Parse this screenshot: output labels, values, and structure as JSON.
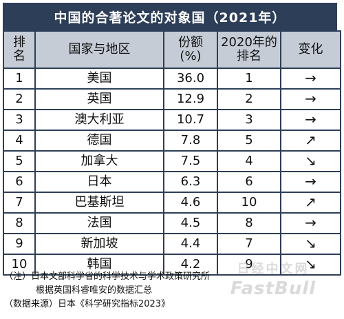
{
  "title": "中国的合著论文的对象国（2021年）",
  "headers": {
    "rank": [
      "排",
      "名"
    ],
    "country": "国家与地区",
    "share": [
      "份额",
      "(%)"
    ],
    "rank2020": [
      "2020年的",
      "排名"
    ],
    "change": "变化"
  },
  "rows": [
    {
      "rank": "1",
      "country": "美国",
      "share": "36.0",
      "rank2020": "1",
      "change": "→",
      "change_icon": "arrow-right-icon"
    },
    {
      "rank": "2",
      "country": "英国",
      "share": "12.9",
      "rank2020": "2",
      "change": "→",
      "change_icon": "arrow-right-icon"
    },
    {
      "rank": "3",
      "country": "澳大利亚",
      "share": "10.7",
      "rank2020": "3",
      "change": "→",
      "change_icon": "arrow-right-icon"
    },
    {
      "rank": "4",
      "country": "德国",
      "share": "7.8",
      "rank2020": "5",
      "change": "↗",
      "change_icon": "arrow-up-right-icon"
    },
    {
      "rank": "5",
      "country": "加拿大",
      "share": "7.5",
      "rank2020": "4",
      "change": "↘",
      "change_icon": "arrow-down-right-icon"
    },
    {
      "rank": "6",
      "country": "日本",
      "share": "6.3",
      "rank2020": "6",
      "change": "→",
      "change_icon": "arrow-right-icon"
    },
    {
      "rank": "7",
      "country": "巴基斯坦",
      "share": "4.6",
      "rank2020": "10",
      "change": "↗",
      "change_icon": "arrow-up-right-icon"
    },
    {
      "rank": "8",
      "country": "法国",
      "share": "4.5",
      "rank2020": "8",
      "change": "→",
      "change_icon": "arrow-right-icon"
    },
    {
      "rank": "9",
      "country": "新加坡",
      "share": "4.4",
      "rank2020": "7",
      "change": "↘",
      "change_icon": "arrow-down-right-icon"
    },
    {
      "rank": "10",
      "country": "韩国",
      "share": "4.2",
      "rank2020": "9",
      "change": "↘",
      "change_icon": "arrow-down-right-icon"
    }
  ],
  "notes": {
    "line1": "（注）日本文部科学省的科学技术与学术政策研究所",
    "line2": "根据英国科睿唯安的数据汇总",
    "source": "（数据来源）日本《科学研究指标2023》"
  },
  "watermark": {
    "line1": "日经中文网",
    "line2": "FastBull"
  },
  "colors": {
    "title_bg": "#2d3e58",
    "header_bg": "#c5ccd6",
    "border": "#2d3e58"
  }
}
